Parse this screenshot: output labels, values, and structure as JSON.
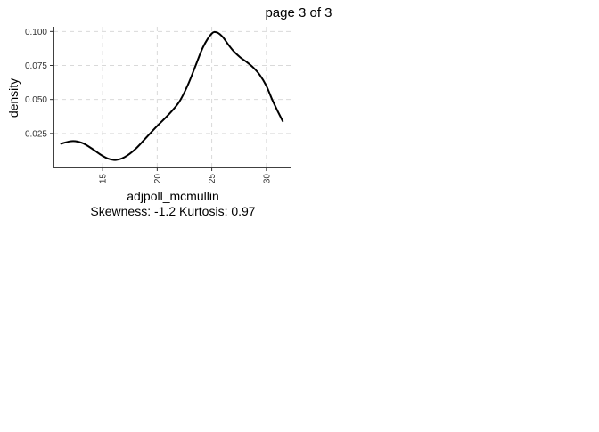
{
  "page_label": "page 3 of 3",
  "chart_data": {
    "type": "line",
    "xlabel": "adjpoll_mcmullin",
    "ylabel": "density",
    "caption": "Skewness: -1.2 Kurtosis: 0.97",
    "xlim": [
      10.5,
      32.3
    ],
    "ylim": [
      0.0,
      0.1035
    ],
    "x_ticks": [
      15,
      20,
      25,
      30
    ],
    "y_ticks": [
      0.025,
      0.05,
      0.075,
      0.1
    ],
    "x_tick_labels": [
      "15",
      "20",
      "25",
      "30"
    ],
    "y_tick_labels": [
      "0.025",
      "0.050",
      "0.075",
      "0.100"
    ],
    "grid": true,
    "line_color": "#000000",
    "grid_color": "#d9d9d9",
    "series": [
      {
        "x": [
          11.2,
          12.0,
          12.5,
          13.2,
          14.0,
          14.8,
          15.5,
          16.2,
          17.0,
          18.0,
          19.0,
          20.0,
          21.0,
          22.0,
          22.8,
          23.5,
          24.2,
          25.0,
          25.5,
          26.0,
          26.5,
          27.0,
          27.6,
          28.2,
          28.8,
          29.4,
          30.0,
          30.5,
          31.0,
          31.5
        ],
        "y": [
          0.0175,
          0.0192,
          0.0193,
          0.0178,
          0.014,
          0.0095,
          0.0065,
          0.0055,
          0.0075,
          0.0135,
          0.022,
          0.0305,
          0.0385,
          0.048,
          0.0605,
          0.0745,
          0.0885,
          0.0985,
          0.0992,
          0.096,
          0.0905,
          0.0855,
          0.081,
          0.0775,
          0.0735,
          0.068,
          0.06,
          0.0505,
          0.042,
          0.034
        ]
      }
    ]
  }
}
